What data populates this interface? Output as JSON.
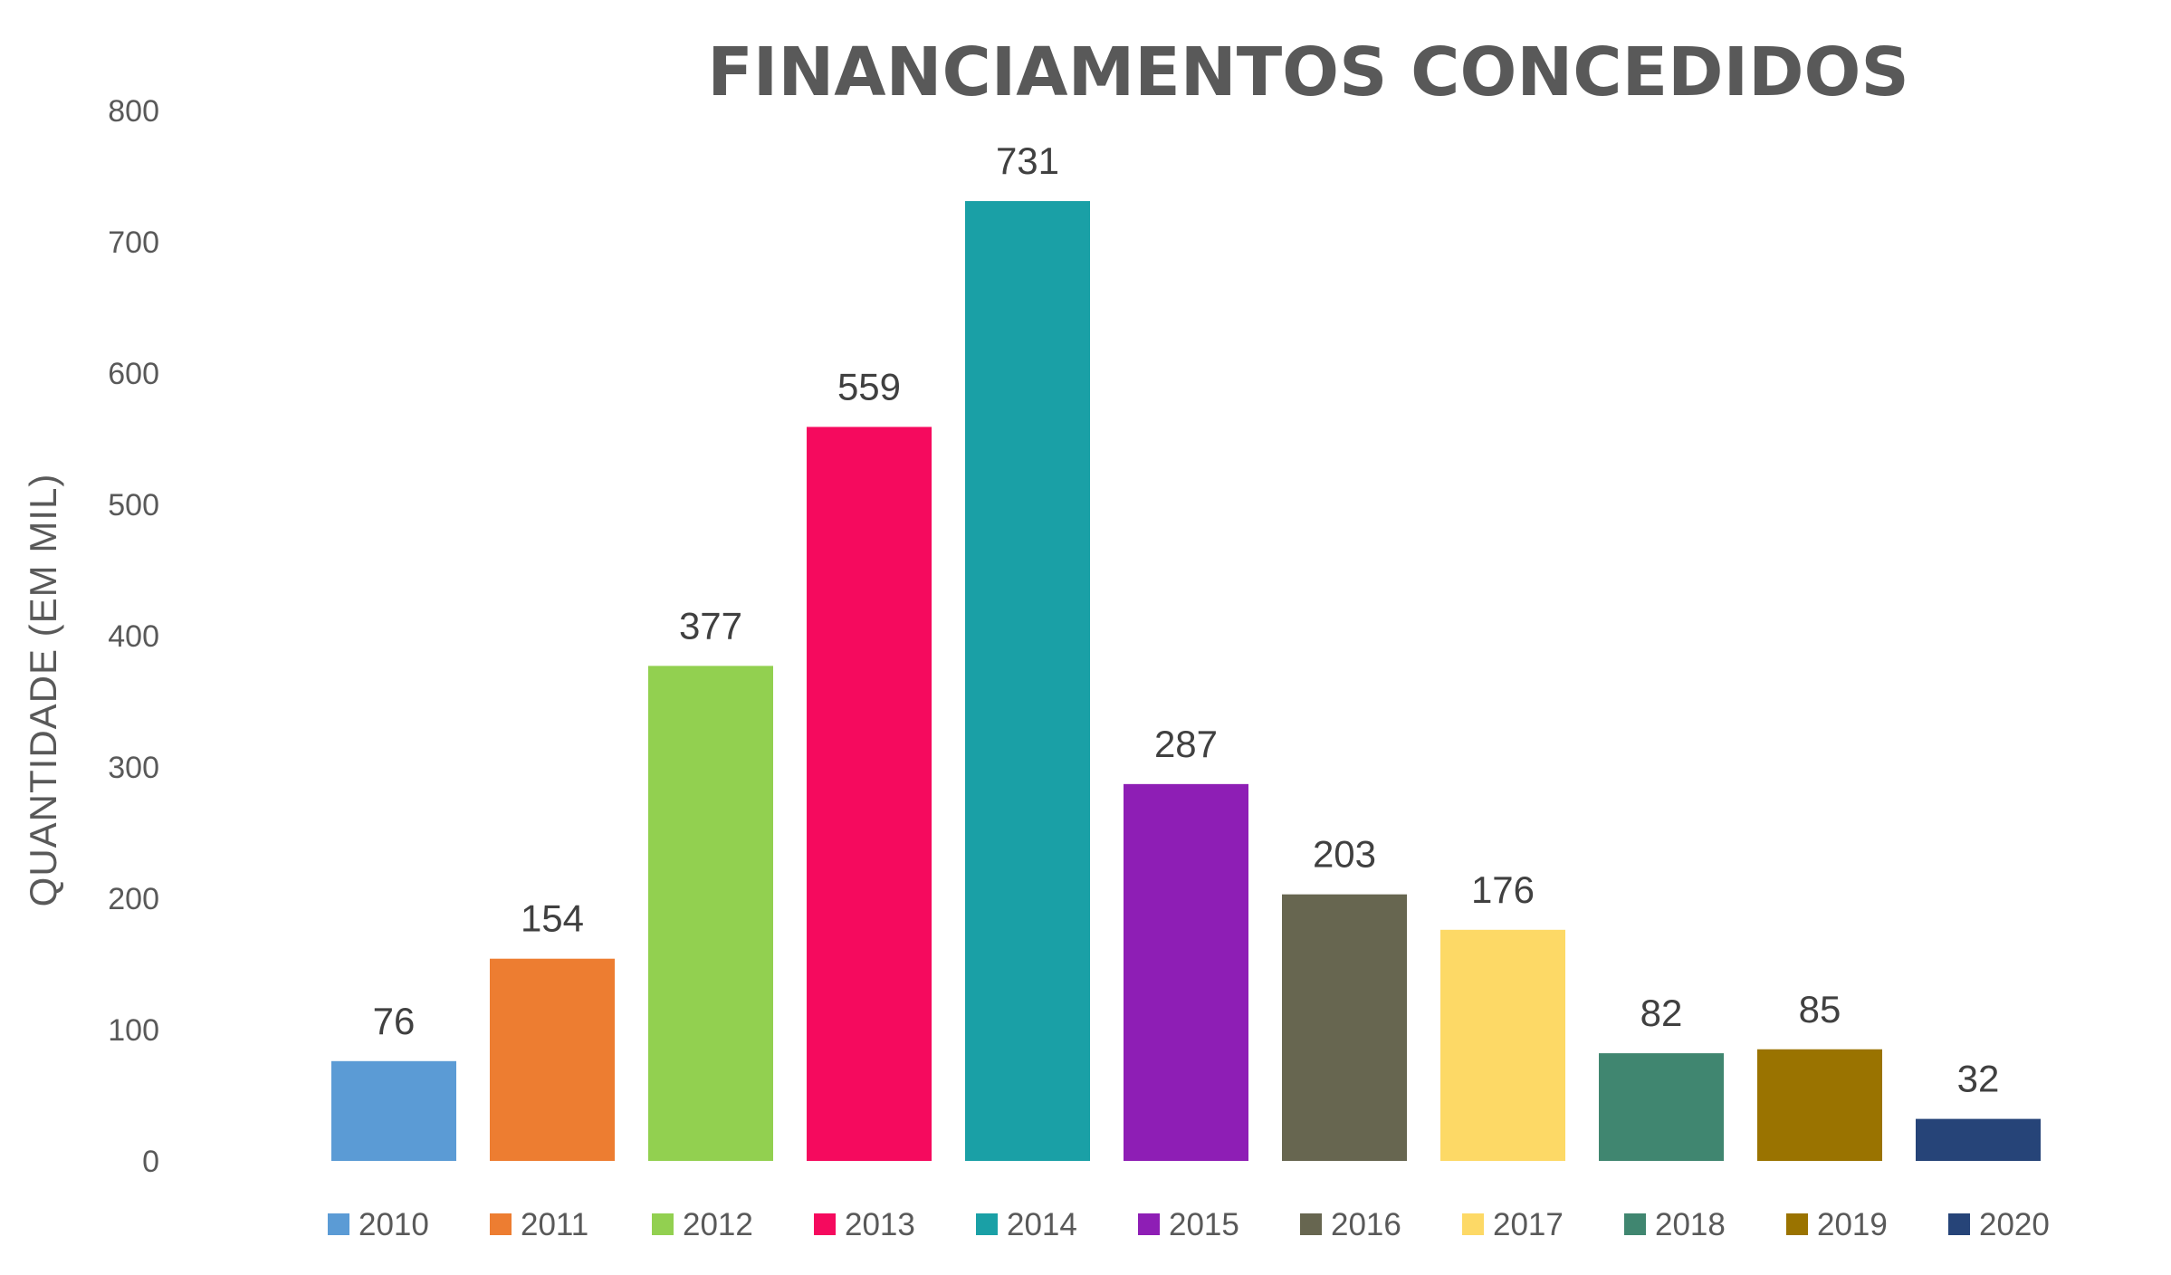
{
  "chart_data": {
    "type": "bar",
    "title": "FINANCIAMENTOS CONCEDIDOS",
    "xlabel": "",
    "ylabel": "QUANTIDADE (EM MIL)",
    "ylim": [
      0,
      800
    ],
    "yticks": [
      0,
      100,
      200,
      300,
      400,
      500,
      600,
      700,
      800
    ],
    "grid": false,
    "legend": "bottom",
    "categories": [
      "2010",
      "2011",
      "2012",
      "2013",
      "2014",
      "2015",
      "2016",
      "2017",
      "2018",
      "2019",
      "2020"
    ],
    "values": [
      76,
      154,
      377,
      559,
      731,
      287,
      203,
      176,
      82,
      85,
      32
    ],
    "colors": [
      "#5B9BD5",
      "#ED7D31",
      "#92D050",
      "#F50A5E",
      "#1AA0A6",
      "#8E1EB5",
      "#676650",
      "#FDD966",
      "#408670",
      "#9A7300",
      "#264478"
    ]
  }
}
